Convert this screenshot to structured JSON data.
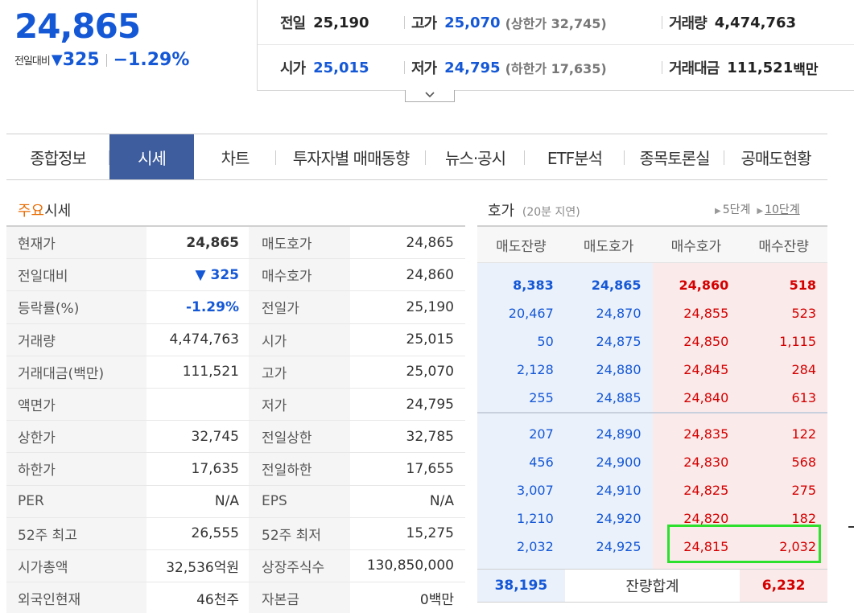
{
  "summary": {
    "price": "24,865",
    "change_label": "전일대비",
    "change_icon": "triangle-down-icon",
    "change_value": "325",
    "change_rate": "−1.29%",
    "prev_close_label": "전일",
    "prev_close": "25,190",
    "high_label": "고가",
    "high": "25,070",
    "upper_limit_text": "(상한가 32,745)",
    "volume_label": "거래량",
    "volume": "4,474,763",
    "open_label": "시가",
    "open": "25,015",
    "low_label": "저가",
    "low": "24,795",
    "lower_limit_text": "(하한가 17,635)",
    "amount_label": "거래대금",
    "amount": "111,521",
    "amount_unit": "백만",
    "expand_icon": "chevron-down-icon"
  },
  "tabs": [
    {
      "label": "종합정보",
      "active": false
    },
    {
      "label": "시세",
      "active": true
    },
    {
      "label": "차트",
      "active": false
    },
    {
      "label": "투자자별 매매동향",
      "active": false
    },
    {
      "label": "뉴스·공시",
      "active": false
    },
    {
      "label": "ETF분석",
      "active": false
    },
    {
      "label": "종목토론실",
      "active": false
    },
    {
      "label": "공매도현황",
      "active": false
    }
  ],
  "main": {
    "title_highlight": "주요",
    "title_rest": "시세",
    "rows": [
      {
        "l1": "현재가",
        "v1": "24,865",
        "l2": "매도호가",
        "v2": "24,865"
      },
      {
        "l1": "전일대비",
        "v1": "▼ 325",
        "l2": "매수호가",
        "v2": "24,860"
      },
      {
        "l1": "등락률(%)",
        "v1": "-1.29%",
        "l2": "전일가",
        "v2": "25,190"
      },
      {
        "l1": "거래량",
        "v1": "4,474,763",
        "l2": "시가",
        "v2": "25,015"
      },
      {
        "l1": "거래대금(백만)",
        "v1": "111,521",
        "l2": "고가",
        "v2": "25,070"
      },
      {
        "l1": "액면가",
        "v1": "",
        "l2": "저가",
        "v2": "24,795"
      },
      {
        "l1": "상한가",
        "v1": "32,745",
        "l2": "전일상한",
        "v2": "32,785"
      },
      {
        "l1": "하한가",
        "v1": "17,635",
        "l2": "전일하한",
        "v2": "17,655"
      },
      {
        "l1": "PER",
        "v1": "N/A",
        "l2": "EPS",
        "v2": "N/A"
      },
      {
        "l1": "52주 최고",
        "v1": "26,555",
        "l2": "52주 최저",
        "v2": "15,275"
      },
      {
        "l1": "시가총액",
        "v1": "32,536억원",
        "l2": "상장주식수",
        "v2": "130,850,000"
      },
      {
        "l1": "외국인현재",
        "v1": "46천주",
        "l2": "자본금",
        "v2": "0백만"
      }
    ]
  },
  "orderbook": {
    "title": "호가",
    "delay": "(20분 지연)",
    "step5": "5단계",
    "step10": "10단계",
    "headers": [
      "매도잔량",
      "매도호가",
      "매수호가",
      "매수잔량"
    ],
    "top_rows": [
      {
        "sell_qty": "8,383",
        "sell_price": "24,865",
        "buy_price": "24,860",
        "buy_qty": "518"
      },
      {
        "sell_qty": "20,467",
        "sell_price": "24,870",
        "buy_price": "24,855",
        "buy_qty": "523"
      },
      {
        "sell_qty": "50",
        "sell_price": "24,875",
        "buy_price": "24,850",
        "buy_qty": "1,115"
      },
      {
        "sell_qty": "2,128",
        "sell_price": "24,880",
        "buy_price": "24,845",
        "buy_qty": "284"
      },
      {
        "sell_qty": "255",
        "sell_price": "24,885",
        "buy_price": "24,840",
        "buy_qty": "613"
      }
    ],
    "bottom_rows": [
      {
        "sell_qty": "207",
        "sell_price": "24,890",
        "buy_price": "24,835",
        "buy_qty": "122"
      },
      {
        "sell_qty": "456",
        "sell_price": "24,900",
        "buy_price": "24,830",
        "buy_qty": "568"
      },
      {
        "sell_qty": "3,007",
        "sell_price": "24,910",
        "buy_price": "24,825",
        "buy_qty": "275"
      },
      {
        "sell_qty": "1,210",
        "sell_price": "24,920",
        "buy_price": "24,820",
        "buy_qty": "182"
      },
      {
        "sell_qty": "2,032",
        "sell_price": "24,925",
        "buy_price": "24,815",
        "buy_qty": "2,032"
      }
    ],
    "total_sell": "38,195",
    "total_label": "잔량합계",
    "total_buy": "6,232"
  },
  "colors": {
    "blue": "#1558d6",
    "red": "#d40000",
    "tab_active": "#3e5d9f",
    "highlight": "#2ee02e"
  }
}
